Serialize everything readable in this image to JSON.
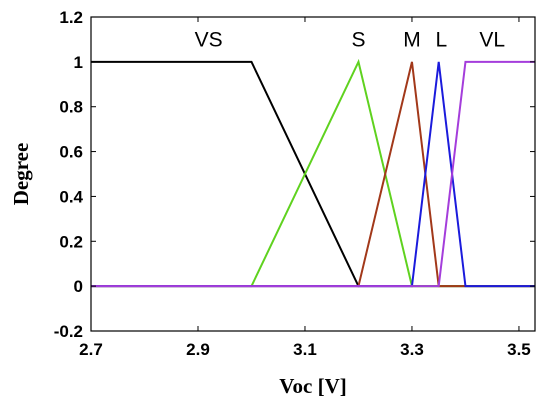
{
  "chart_data": {
    "type": "line",
    "title": "",
    "xlabel": "Voc [V]",
    "ylabel": "Degree",
    "xlim": [
      2.7,
      3.53
    ],
    "ylim": [
      -0.2,
      1.2
    ],
    "grid": false,
    "legend": "none",
    "x_ticks": [
      "2.7",
      "2.9",
      "3.1",
      "3.3",
      "3.5"
    ],
    "y_ticks": [
      "-0.2",
      "0",
      "0.2",
      "0.4",
      "0.6",
      "0.8",
      "1",
      "1.2"
    ],
    "series": [
      {
        "name": "VS",
        "color": "#000000",
        "label_at": [
          2.92,
          1.1
        ],
        "points": [
          [
            2.7,
            1
          ],
          [
            3.0,
            1
          ],
          [
            3.2,
            0
          ],
          [
            3.53,
            0
          ]
        ]
      },
      {
        "name": "S",
        "color": "#5fd21f",
        "label_at": [
          3.2,
          1.1
        ],
        "points": [
          [
            2.7,
            0
          ],
          [
            3.0,
            0
          ],
          [
            3.2,
            1
          ],
          [
            3.3,
            0
          ],
          [
            3.53,
            0
          ]
        ]
      },
      {
        "name": "M",
        "color": "#a2381a",
        "label_at": [
          3.3,
          1.1
        ],
        "points": [
          [
            2.7,
            0
          ],
          [
            3.2,
            0
          ],
          [
            3.3,
            1
          ],
          [
            3.35,
            0
          ],
          [
            3.53,
            0
          ]
        ]
      },
      {
        "name": "L",
        "color": "#1b1bdc",
        "label_at": [
          3.355,
          1.1
        ],
        "points": [
          [
            2.7,
            0
          ],
          [
            3.3,
            0
          ],
          [
            3.35,
            1
          ],
          [
            3.4,
            0
          ],
          [
            3.53,
            0
          ]
        ]
      },
      {
        "name": "VL",
        "color": "#a43ddb",
        "label_at": [
          3.45,
          1.1
        ],
        "points": [
          [
            2.7,
            0
          ],
          [
            3.35,
            0
          ],
          [
            3.4,
            1
          ],
          [
            3.53,
            1
          ]
        ]
      }
    ]
  }
}
